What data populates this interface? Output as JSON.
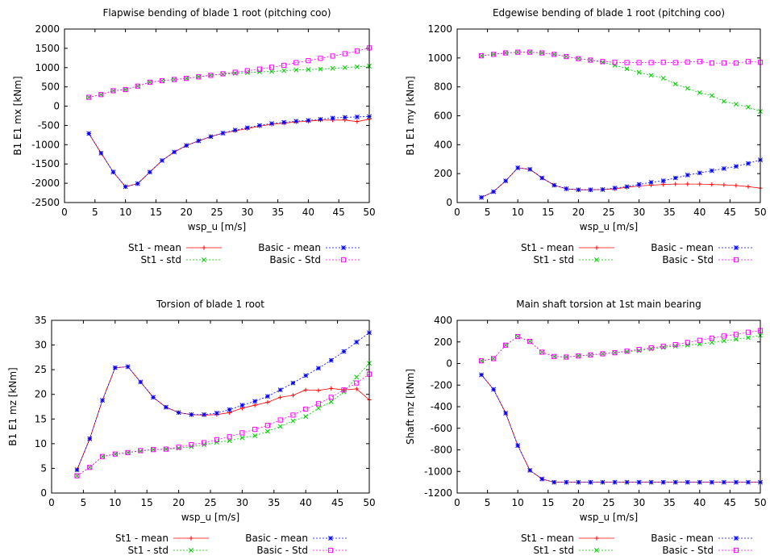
{
  "chart_data": [
    {
      "type": "line",
      "title": "Flapwise bending of blade 1 root (pitching coo)",
      "xlabel": "wsp_u [m/s]",
      "ylabel": "B1 E1 mx [kNm]",
      "xlim": [
        0,
        50
      ],
      "ylim": [
        -2500,
        2000
      ],
      "xticks": [
        "0",
        "5",
        "10",
        "15",
        "20",
        "25",
        "30",
        "35",
        "40",
        "45",
        "50"
      ],
      "yticks": [
        "-2500",
        "-2000",
        "-1500",
        "-1000",
        "-500",
        "0",
        "500",
        "1000",
        "1500",
        "2000"
      ],
      "grid": false,
      "legend": "below",
      "x": [
        4,
        6,
        8,
        10,
        12,
        14,
        16,
        18,
        20,
        22,
        24,
        26,
        28,
        30,
        32,
        34,
        36,
        38,
        40,
        42,
        44,
        46,
        48,
        50
      ],
      "series": [
        {
          "name": "St1 - mean",
          "color": "#ff0000",
          "marker": "+",
          "dash": "",
          "values": [
            -710,
            -1220,
            -1710,
            -2090,
            -2010,
            -1710,
            -1410,
            -1190,
            -1020,
            -900,
            -790,
            -700,
            -640,
            -580,
            -520,
            -470,
            -440,
            -410,
            -390,
            -360,
            -360,
            -360,
            -400,
            -340
          ]
        },
        {
          "name": "St1 - std",
          "color": "#00cc00",
          "marker": "x",
          "dash": "2,2",
          "values": [
            230,
            300,
            400,
            430,
            520,
            620,
            660,
            690,
            720,
            760,
            800,
            830,
            850,
            870,
            890,
            900,
            920,
            940,
            950,
            960,
            980,
            1000,
            1020,
            1040
          ]
        },
        {
          "name": "Basic - mean",
          "color": "#0000ff",
          "marker": "*",
          "dash": "2,2",
          "values": [
            -710,
            -1220,
            -1710,
            -2090,
            -2010,
            -1710,
            -1410,
            -1190,
            -1020,
            -900,
            -790,
            -700,
            -620,
            -560,
            -500,
            -450,
            -420,
            -390,
            -370,
            -340,
            -310,
            -290,
            -280,
            -270
          ]
        },
        {
          "name": "Basic - Std",
          "color": "#ff00ff",
          "marker": "s",
          "dash": "2,2",
          "values": [
            230,
            300,
            400,
            430,
            520,
            620,
            660,
            690,
            720,
            760,
            800,
            840,
            880,
            920,
            960,
            1010,
            1060,
            1130,
            1180,
            1240,
            1300,
            1360,
            1430,
            1510
          ]
        }
      ]
    },
    {
      "type": "line",
      "title": "Edgewise bending of blade 1 root (pitching coo)",
      "xlabel": "wsp_u [m/s]",
      "ylabel": "B1 E1 my [kNm]",
      "xlim": [
        0,
        50
      ],
      "ylim": [
        0,
        1200
      ],
      "xticks": [
        "0",
        "5",
        "10",
        "15",
        "20",
        "25",
        "30",
        "35",
        "40",
        "45",
        "50"
      ],
      "yticks": [
        "0",
        "200",
        "400",
        "600",
        "800",
        "1000",
        "1200"
      ],
      "grid": false,
      "legend": "below",
      "x": [
        4,
        6,
        8,
        10,
        12,
        14,
        16,
        18,
        20,
        22,
        24,
        26,
        28,
        30,
        32,
        34,
        36,
        38,
        40,
        42,
        44,
        46,
        48,
        50
      ],
      "series": [
        {
          "name": "St1 - mean",
          "color": "#ff0000",
          "marker": "+",
          "dash": "",
          "values": [
            35,
            75,
            150,
            240,
            230,
            170,
            120,
            95,
            88,
            88,
            90,
            95,
            105,
            115,
            120,
            125,
            128,
            128,
            128,
            125,
            122,
            118,
            110,
            100
          ]
        },
        {
          "name": "St1 - std",
          "color": "#00cc00",
          "marker": "x",
          "dash": "2,2",
          "values": [
            1015,
            1025,
            1035,
            1040,
            1040,
            1035,
            1025,
            1010,
            995,
            985,
            970,
            950,
            925,
            900,
            880,
            860,
            820,
            790,
            760,
            740,
            700,
            680,
            660,
            630
          ]
        },
        {
          "name": "Basic - mean",
          "color": "#0000ff",
          "marker": "*",
          "dash": "2,2",
          "values": [
            35,
            75,
            150,
            240,
            230,
            170,
            120,
            95,
            88,
            88,
            90,
            100,
            110,
            125,
            140,
            150,
            170,
            190,
            205,
            220,
            235,
            250,
            270,
            295
          ]
        },
        {
          "name": "Basic - Std",
          "color": "#ff00ff",
          "marker": "s",
          "dash": "2,2",
          "values": [
            1015,
            1025,
            1035,
            1040,
            1040,
            1035,
            1025,
            1010,
            995,
            985,
            975,
            970,
            968,
            968,
            968,
            970,
            968,
            972,
            975,
            965,
            965,
            965,
            975,
            970
          ]
        }
      ]
    },
    {
      "type": "line",
      "title": "Torsion of blade 1 root",
      "xlabel": "wsp_u [m/s]",
      "ylabel": "B1 E1 mz [kNm]",
      "xlim": [
        0,
        50
      ],
      "ylim": [
        0,
        35
      ],
      "xticks": [
        "0",
        "5",
        "10",
        "15",
        "20",
        "25",
        "30",
        "35",
        "40",
        "45",
        "50"
      ],
      "yticks": [
        "0",
        "5",
        "10",
        "15",
        "20",
        "25",
        "30",
        "35"
      ],
      "grid": false,
      "legend": "below",
      "x": [
        4,
        6,
        8,
        10,
        12,
        14,
        16,
        18,
        20,
        22,
        24,
        26,
        28,
        30,
        32,
        34,
        36,
        38,
        40,
        42,
        44,
        46,
        48,
        50
      ],
      "series": [
        {
          "name": "St1 - mean",
          "color": "#ff0000",
          "marker": "+",
          "dash": "",
          "values": [
            4.7,
            11,
            18.8,
            25.4,
            25.6,
            22.5,
            19.4,
            17.4,
            16.3,
            15.9,
            15.8,
            15.9,
            16.3,
            17.2,
            17.8,
            18.4,
            19.4,
            19.8,
            20.9,
            20.8,
            21.2,
            20.9,
            21.1,
            18.9
          ]
        },
        {
          "name": "St1 - std",
          "color": "#00cc00",
          "marker": "x",
          "dash": "2,2",
          "values": [
            3.5,
            5.2,
            7.4,
            7.9,
            8.2,
            8.5,
            8.8,
            8.9,
            9.1,
            9.4,
            9.8,
            10.3,
            10.6,
            11.2,
            11.6,
            12.5,
            13.5,
            14.6,
            15.5,
            17.2,
            18.5,
            20.5,
            23.5,
            26.3
          ]
        },
        {
          "name": "Basic - mean",
          "color": "#0000ff",
          "marker": "*",
          "dash": "2,2",
          "values": [
            4.7,
            11,
            18.8,
            25.4,
            25.6,
            22.5,
            19.4,
            17.4,
            16.3,
            15.9,
            15.9,
            16.2,
            16.9,
            17.8,
            18.6,
            19.6,
            20.9,
            22.3,
            23.8,
            25.3,
            26.9,
            28.7,
            30.6,
            32.5
          ]
        },
        {
          "name": "Basic - Std",
          "color": "#ff00ff",
          "marker": "s",
          "dash": "2,2",
          "values": [
            3.5,
            5.2,
            7.4,
            7.9,
            8.2,
            8.6,
            8.8,
            8.9,
            9.3,
            9.8,
            10.2,
            10.8,
            11.4,
            12.2,
            12.9,
            13.7,
            14.8,
            15.8,
            17,
            18.1,
            19.4,
            20.9,
            22.3,
            24.1
          ]
        }
      ]
    },
    {
      "type": "line",
      "title": "Main shaft torsion at 1st main bearing",
      "xlabel": "wsp_u [m/s]",
      "ylabel": "Shaft mz [kNm]",
      "xlim": [
        0,
        50
      ],
      "ylim": [
        -1200,
        400
      ],
      "xticks": [
        "0",
        "5",
        "10",
        "15",
        "20",
        "25",
        "30",
        "35",
        "40",
        "45",
        "50"
      ],
      "yticks": [
        "-1200",
        "-1000",
        "-800",
        "-600",
        "-400",
        "-200",
        "0",
        "200",
        "400"
      ],
      "grid": false,
      "legend": "below",
      "x": [
        4,
        6,
        8,
        10,
        12,
        14,
        16,
        18,
        20,
        22,
        24,
        26,
        28,
        30,
        32,
        34,
        36,
        38,
        40,
        42,
        44,
        46,
        48,
        50
      ],
      "series": [
        {
          "name": "St1 - mean",
          "color": "#ff0000",
          "marker": "+",
          "dash": "",
          "values": [
            -105,
            -240,
            -460,
            -760,
            -990,
            -1070,
            -1100,
            -1100,
            -1100,
            -1100,
            -1100,
            -1100,
            -1100,
            -1100,
            -1100,
            -1100,
            -1100,
            -1100,
            -1100,
            -1100,
            -1100,
            -1100,
            -1100,
            -1100
          ]
        },
        {
          "name": "St1 - std",
          "color": "#00cc00",
          "marker": "x",
          "dash": "2,2",
          "values": [
            25,
            45,
            170,
            250,
            205,
            105,
            65,
            60,
            70,
            80,
            90,
            100,
            110,
            120,
            135,
            150,
            160,
            170,
            180,
            195,
            210,
            225,
            240,
            260
          ]
        },
        {
          "name": "Basic - mean",
          "color": "#0000ff",
          "marker": "*",
          "dash": "2,2",
          "values": [
            -105,
            -240,
            -460,
            -760,
            -990,
            -1070,
            -1100,
            -1100,
            -1100,
            -1100,
            -1100,
            -1100,
            -1100,
            -1100,
            -1100,
            -1100,
            -1100,
            -1100,
            -1100,
            -1100,
            -1100,
            -1100,
            -1100,
            -1100
          ]
        },
        {
          "name": "Basic - Std",
          "color": "#ff00ff",
          "marker": "s",
          "dash": "2,2",
          "values": [
            25,
            45,
            170,
            250,
            205,
            105,
            65,
            60,
            70,
            80,
            90,
            100,
            115,
            130,
            145,
            160,
            175,
            195,
            215,
            235,
            255,
            270,
            290,
            305
          ]
        }
      ]
    }
  ]
}
